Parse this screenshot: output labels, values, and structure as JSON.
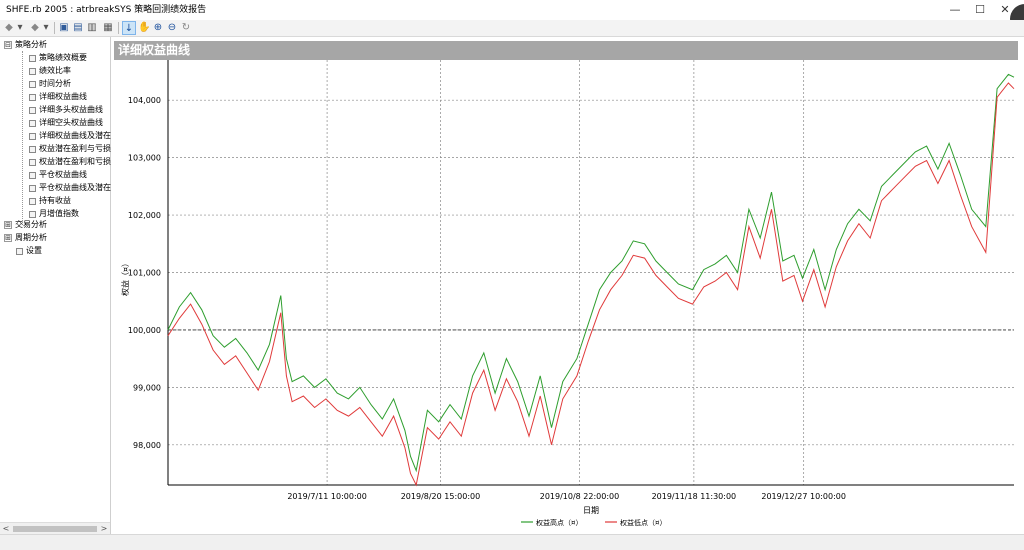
{
  "window": {
    "title": "SHFE.rb 2005 : atrbreakSYS 策略回测绩效报告",
    "minimize": "—",
    "maximize": "☐",
    "close": "✕"
  },
  "toolbar": {
    "icons": [
      "back-icon",
      "forward-icon",
      "save-icon",
      "print-preview-icon",
      "print-icon",
      "window-icon",
      "pointer-icon",
      "pan-icon",
      "zoom-in-icon",
      "zoom-out-icon",
      "reset-icon"
    ],
    "back_glyph": "◆",
    "dropdown_glyph": "▾",
    "forward_glyph": "◆",
    "save_glyph": "▣",
    "preview_glyph": "▤",
    "print_glyph": "▥",
    "window_glyph": "▦",
    "pointer_glyph": "↓",
    "pan_glyph": "✋",
    "zoomin_glyph": "⊕",
    "zoomout_glyph": "⊖",
    "reset_glyph": "↻"
  },
  "tree": {
    "root": "策略分析",
    "root_expander": "⊟",
    "items": [
      "策略绩效概要",
      "绩效比率",
      "时间分析",
      "详细权益曲线",
      "详细多头权益曲线",
      "详细空头权益曲线",
      "详细权益曲线及潜在",
      "权益潜在盈利与亏损",
      "权益潜在盈利和亏损",
      "平仓权益曲线",
      "平仓权益曲线及潜在",
      "持有收益",
      "月增值指数"
    ],
    "groups": [
      {
        "label": "交易分析",
        "expander": "⊞"
      },
      {
        "label": "周期分析",
        "expander": "⊞"
      }
    ],
    "settings": "设置",
    "scroll_left": "<",
    "scroll_right": ">"
  },
  "panel": {
    "title": "详细权益曲线"
  },
  "chart_data": {
    "type": "line",
    "ylabel": "权益（¤）",
    "xlabel": "日期",
    "ylim": [
      97300,
      104700
    ],
    "yticks": [
      98000,
      99000,
      100000,
      101000,
      102000,
      103000,
      104000
    ],
    "ytick_labels": [
      "98,000",
      "99,000",
      "100,000",
      "101,000",
      "102,000",
      "103,000",
      "104,000"
    ],
    "x_range": [
      "2019-05-16",
      "2020-03-11"
    ],
    "xticks": [
      "2019-07-11 10:00",
      "2019-08-20 15:00",
      "2019-10-08 22:00",
      "2019-11-18 11:30",
      "2019-12-27 10:00"
    ],
    "xtick_labels": [
      "2019/7/11 10:00:00",
      "2019/8/20 15:00:00",
      "2019/10/8 22:00:00",
      "2019/11/18 11:30:00",
      "2019/12/27 10:00:00"
    ],
    "baseline": 100000,
    "grid": true,
    "legend_position": "bottom",
    "series": [
      {
        "name": "权益高点（¤）",
        "color": "#2e9e2e",
        "x": [
          "2019-05-16",
          "2019-05-20",
          "2019-05-24",
          "2019-05-28",
          "2019-06-01",
          "2019-06-05",
          "2019-06-09",
          "2019-06-13",
          "2019-06-17",
          "2019-06-21",
          "2019-06-25",
          "2019-06-27",
          "2019-06-29",
          "2019-07-03",
          "2019-07-07",
          "2019-07-11",
          "2019-07-15",
          "2019-07-19",
          "2019-07-23",
          "2019-07-27",
          "2019-07-31",
          "2019-08-04",
          "2019-08-08",
          "2019-08-10",
          "2019-08-12",
          "2019-08-16",
          "2019-08-20",
          "2019-08-24",
          "2019-08-28",
          "2019-09-01",
          "2019-09-05",
          "2019-09-09",
          "2019-09-13",
          "2019-09-17",
          "2019-09-21",
          "2019-09-25",
          "2019-09-29",
          "2019-10-03",
          "2019-10-08",
          "2019-10-12",
          "2019-10-16",
          "2019-10-20",
          "2019-10-24",
          "2019-10-28",
          "2019-11-01",
          "2019-11-05",
          "2019-11-09",
          "2019-11-13",
          "2019-11-18",
          "2019-11-22",
          "2019-11-26",
          "2019-11-30",
          "2019-12-04",
          "2019-12-08",
          "2019-12-12",
          "2019-12-16",
          "2019-12-20",
          "2019-12-24",
          "2019-12-27",
          "2019-12-31",
          "2020-01-04",
          "2020-01-08",
          "2020-01-12",
          "2020-01-16",
          "2020-01-20",
          "2020-01-24",
          "2020-01-28",
          "2020-02-01",
          "2020-02-05",
          "2020-02-09",
          "2020-02-13",
          "2020-02-17",
          "2020-02-21",
          "2020-02-25",
          "2020-03-01",
          "2020-03-05",
          "2020-03-09",
          "2020-03-11"
        ],
        "values": [
          100000,
          100400,
          100650,
          100350,
          99900,
          99700,
          99850,
          99600,
          99300,
          99750,
          100600,
          99500,
          99100,
          99200,
          99000,
          99150,
          98900,
          98800,
          99000,
          98700,
          98450,
          98800,
          98250,
          97800,
          97550,
          98600,
          98400,
          98700,
          98450,
          99200,
          99600,
          98900,
          99500,
          99100,
          98500,
          99200,
          98300,
          99100,
          99500,
          100100,
          100700,
          101000,
          101200,
          101550,
          101500,
          101200,
          101000,
          100800,
          100700,
          101050,
          101150,
          101300,
          101000,
          102100,
          101600,
          102400,
          101200,
          101300,
          100900,
          101400,
          100700,
          101400,
          101850,
          102100,
          101900,
          102500,
          102700,
          102900,
          103100,
          103200,
          102800,
          103250,
          102700,
          102100,
          101800,
          104200,
          104450,
          104400
        ]
      },
      {
        "name": "权益低点（¤）",
        "color": "#e03a3a",
        "x": [
          "2019-05-16",
          "2019-05-20",
          "2019-05-24",
          "2019-05-28",
          "2019-06-01",
          "2019-06-05",
          "2019-06-09",
          "2019-06-13",
          "2019-06-17",
          "2019-06-21",
          "2019-06-25",
          "2019-06-27",
          "2019-06-29",
          "2019-07-03",
          "2019-07-07",
          "2019-07-11",
          "2019-07-15",
          "2019-07-19",
          "2019-07-23",
          "2019-07-27",
          "2019-07-31",
          "2019-08-04",
          "2019-08-08",
          "2019-08-10",
          "2019-08-12",
          "2019-08-16",
          "2019-08-20",
          "2019-08-24",
          "2019-08-28",
          "2019-09-01",
          "2019-09-05",
          "2019-09-09",
          "2019-09-13",
          "2019-09-17",
          "2019-09-21",
          "2019-09-25",
          "2019-09-29",
          "2019-10-03",
          "2019-10-08",
          "2019-10-12",
          "2019-10-16",
          "2019-10-20",
          "2019-10-24",
          "2019-10-28",
          "2019-11-01",
          "2019-11-05",
          "2019-11-09",
          "2019-11-13",
          "2019-11-18",
          "2019-11-22",
          "2019-11-26",
          "2019-11-30",
          "2019-12-04",
          "2019-12-08",
          "2019-12-12",
          "2019-12-16",
          "2019-12-20",
          "2019-12-24",
          "2019-12-27",
          "2019-12-31",
          "2020-01-04",
          "2020-01-08",
          "2020-01-12",
          "2020-01-16",
          "2020-01-20",
          "2020-01-24",
          "2020-01-28",
          "2020-02-01",
          "2020-02-05",
          "2020-02-09",
          "2020-02-13",
          "2020-02-17",
          "2020-02-21",
          "2020-02-25",
          "2020-03-01",
          "2020-03-05",
          "2020-03-09",
          "2020-03-11"
        ],
        "values": [
          99900,
          100200,
          100450,
          100100,
          99650,
          99400,
          99550,
          99250,
          98950,
          99450,
          100300,
          99200,
          98750,
          98850,
          98650,
          98800,
          98600,
          98500,
          98650,
          98400,
          98150,
          98500,
          97950,
          97500,
          97300,
          98300,
          98100,
          98400,
          98150,
          98900,
          99300,
          98600,
          99150,
          98750,
          98150,
          98850,
          98000,
          98800,
          99200,
          99800,
          100350,
          100700,
          100950,
          101300,
          101250,
          100950,
          100750,
          100550,
          100450,
          100750,
          100850,
          101000,
          100700,
          101800,
          101250,
          102100,
          100850,
          100950,
          100500,
          101050,
          100400,
          101100,
          101550,
          101850,
          101600,
          102250,
          102450,
          102650,
          102850,
          102950,
          102550,
          102950,
          102350,
          101800,
          101350,
          104050,
          104300,
          104200
        ]
      }
    ]
  },
  "statusbar": {}
}
